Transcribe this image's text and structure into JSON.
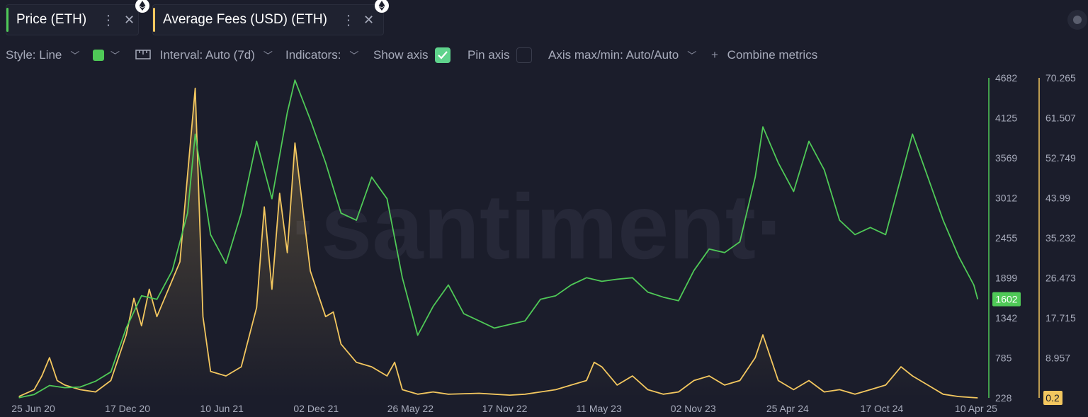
{
  "tabs": [
    {
      "label": "Price (ETH)",
      "color": "#4fc957"
    },
    {
      "label": "Average Fees (USD) (ETH)",
      "color": "#f3c75f"
    }
  ],
  "toolbar": {
    "style": "Style: Line",
    "interval": "Interval: Auto (7d)",
    "indicators": "Indicators:",
    "show_axis": "Show axis",
    "pin_axis": "Pin axis",
    "axis_maxmin": "Axis max/min: Auto/Auto",
    "combine": "Combine metrics",
    "show_axis_checked": true,
    "pin_axis_checked": false
  },
  "watermark": "·santiment·",
  "chart_data": {
    "type": "line",
    "x_labels": [
      "25 Jun 20",
      "17 Dec 20",
      "10 Jun 21",
      "02 Dec 21",
      "26 May 22",
      "17 Nov 22",
      "11 May 23",
      "02 Nov 23",
      "25 Apr 24",
      "17 Oct 24",
      "10 Apr 25"
    ],
    "y_left_ticks": [
      "4682",
      "4125",
      "3569",
      "3012",
      "2455",
      "1899",
      "1342",
      "785",
      "228"
    ],
    "y_right_ticks": [
      "70.265",
      "61.507",
      "52.749",
      "43.99",
      "35.232",
      "26.473",
      "17.715",
      "8.957",
      "0.2"
    ],
    "y_left_range": [
      228,
      4682
    ],
    "y_right_range": [
      0.2,
      70.265
    ],
    "price_badge": "1602",
    "fees_badge": "0.2",
    "series": [
      {
        "name": "Price (ETH)",
        "color": "#4fc957",
        "axis": "left",
        "points": [
          [
            "2020-06-25",
            230
          ],
          [
            "2020-07-23",
            275
          ],
          [
            "2020-08-20",
            400
          ],
          [
            "2020-09-17",
            370
          ],
          [
            "2020-10-15",
            380
          ],
          [
            "2020-11-12",
            460
          ],
          [
            "2020-12-10",
            590
          ],
          [
            "2021-01-07",
            1200
          ],
          [
            "2021-02-04",
            1650
          ],
          [
            "2021-03-04",
            1600
          ],
          [
            "2021-04-01",
            2000
          ],
          [
            "2021-04-29",
            2800
          ],
          [
            "2021-05-13",
            3900
          ],
          [
            "2021-06-10",
            2500
          ],
          [
            "2021-07-08",
            2100
          ],
          [
            "2021-08-05",
            2800
          ],
          [
            "2021-09-02",
            3800
          ],
          [
            "2021-09-30",
            3000
          ],
          [
            "2021-10-28",
            4200
          ],
          [
            "2021-11-11",
            4650
          ],
          [
            "2021-12-09",
            4100
          ],
          [
            "2022-01-06",
            3500
          ],
          [
            "2022-02-03",
            2800
          ],
          [
            "2022-03-03",
            2700
          ],
          [
            "2022-03-31",
            3300
          ],
          [
            "2022-04-28",
            3000
          ],
          [
            "2022-05-26",
            1900
          ],
          [
            "2022-06-23",
            1100
          ],
          [
            "2022-07-21",
            1500
          ],
          [
            "2022-08-18",
            1800
          ],
          [
            "2022-09-15",
            1400
          ],
          [
            "2022-10-13",
            1300
          ],
          [
            "2022-11-10",
            1200
          ],
          [
            "2022-12-08",
            1250
          ],
          [
            "2023-01-05",
            1300
          ],
          [
            "2023-02-02",
            1600
          ],
          [
            "2023-03-02",
            1650
          ],
          [
            "2023-03-30",
            1800
          ],
          [
            "2023-04-27",
            1900
          ],
          [
            "2023-05-25",
            1850
          ],
          [
            "2023-06-22",
            1880
          ],
          [
            "2023-07-20",
            1900
          ],
          [
            "2023-08-17",
            1700
          ],
          [
            "2023-09-14",
            1630
          ],
          [
            "2023-10-12",
            1580
          ],
          [
            "2023-11-09",
            2000
          ],
          [
            "2023-12-07",
            2300
          ],
          [
            "2024-01-04",
            2250
          ],
          [
            "2024-02-01",
            2400
          ],
          [
            "2024-02-29",
            3300
          ],
          [
            "2024-03-14",
            4000
          ],
          [
            "2024-04-11",
            3500
          ],
          [
            "2024-05-09",
            3100
          ],
          [
            "2024-06-06",
            3800
          ],
          [
            "2024-07-04",
            3400
          ],
          [
            "2024-08-01",
            2700
          ],
          [
            "2024-08-29",
            2500
          ],
          [
            "2024-09-26",
            2600
          ],
          [
            "2024-10-24",
            2500
          ],
          [
            "2024-11-21",
            3300
          ],
          [
            "2024-12-12",
            3900
          ],
          [
            "2025-01-09",
            3300
          ],
          [
            "2025-02-06",
            2700
          ],
          [
            "2025-03-06",
            2200
          ],
          [
            "2025-04-03",
            1800
          ],
          [
            "2025-04-10",
            1602
          ]
        ]
      },
      {
        "name": "Average Fees (USD) (ETH)",
        "color": "#f3c75f",
        "axis": "right",
        "points": [
          [
            "2020-06-25",
            0.5
          ],
          [
            "2020-07-23",
            2
          ],
          [
            "2020-08-06",
            5
          ],
          [
            "2020-08-20",
            9
          ],
          [
            "2020-09-03",
            4
          ],
          [
            "2020-09-17",
            3
          ],
          [
            "2020-10-15",
            2
          ],
          [
            "2020-11-12",
            1.5
          ],
          [
            "2020-12-10",
            4
          ],
          [
            "2021-01-07",
            14
          ],
          [
            "2021-01-21",
            22
          ],
          [
            "2021-02-04",
            16
          ],
          [
            "2021-02-18",
            24
          ],
          [
            "2021-03-04",
            18
          ],
          [
            "2021-04-01",
            26
          ],
          [
            "2021-04-15",
            30
          ],
          [
            "2021-05-13",
            68
          ],
          [
            "2021-05-27",
            18
          ],
          [
            "2021-06-10",
            6
          ],
          [
            "2021-07-08",
            5
          ],
          [
            "2021-08-05",
            7
          ],
          [
            "2021-09-02",
            20
          ],
          [
            "2021-09-16",
            42
          ],
          [
            "2021-09-30",
            24
          ],
          [
            "2021-10-14",
            45
          ],
          [
            "2021-10-28",
            32
          ],
          [
            "2021-11-11",
            56
          ],
          [
            "2021-12-09",
            28
          ],
          [
            "2022-01-06",
            18
          ],
          [
            "2022-01-20",
            19
          ],
          [
            "2022-02-03",
            12
          ],
          [
            "2022-03-03",
            8
          ],
          [
            "2022-03-31",
            7
          ],
          [
            "2022-04-28",
            5
          ],
          [
            "2022-05-12",
            8
          ],
          [
            "2022-05-26",
            2
          ],
          [
            "2022-06-23",
            1
          ],
          [
            "2022-07-21",
            1.5
          ],
          [
            "2022-08-18",
            1
          ],
          [
            "2022-10-13",
            1.2
          ],
          [
            "2022-11-10",
            1
          ],
          [
            "2022-12-08",
            0.8
          ],
          [
            "2023-01-05",
            1
          ],
          [
            "2023-02-02",
            1.5
          ],
          [
            "2023-03-02",
            2
          ],
          [
            "2023-03-30",
            3
          ],
          [
            "2023-04-27",
            4
          ],
          [
            "2023-05-11",
            8
          ],
          [
            "2023-05-25",
            7
          ],
          [
            "2023-06-22",
            3
          ],
          [
            "2023-07-20",
            5
          ],
          [
            "2023-08-17",
            2
          ],
          [
            "2023-09-14",
            1
          ],
          [
            "2023-10-12",
            1.5
          ],
          [
            "2023-11-09",
            4
          ],
          [
            "2023-12-07",
            5
          ],
          [
            "2024-01-04",
            3
          ],
          [
            "2024-02-01",
            4
          ],
          [
            "2024-02-29",
            9
          ],
          [
            "2024-03-14",
            14
          ],
          [
            "2024-04-11",
            4
          ],
          [
            "2024-05-09",
            2
          ],
          [
            "2024-06-06",
            4
          ],
          [
            "2024-07-04",
            1.5
          ],
          [
            "2024-08-01",
            2
          ],
          [
            "2024-08-29",
            1
          ],
          [
            "2024-09-26",
            2
          ],
          [
            "2024-10-24",
            3
          ],
          [
            "2024-11-21",
            7
          ],
          [
            "2024-12-12",
            5
          ],
          [
            "2025-01-09",
            3
          ],
          [
            "2025-02-06",
            1
          ],
          [
            "2025-03-06",
            0.5
          ],
          [
            "2025-04-10",
            0.2
          ]
        ]
      }
    ],
    "grid": false
  }
}
